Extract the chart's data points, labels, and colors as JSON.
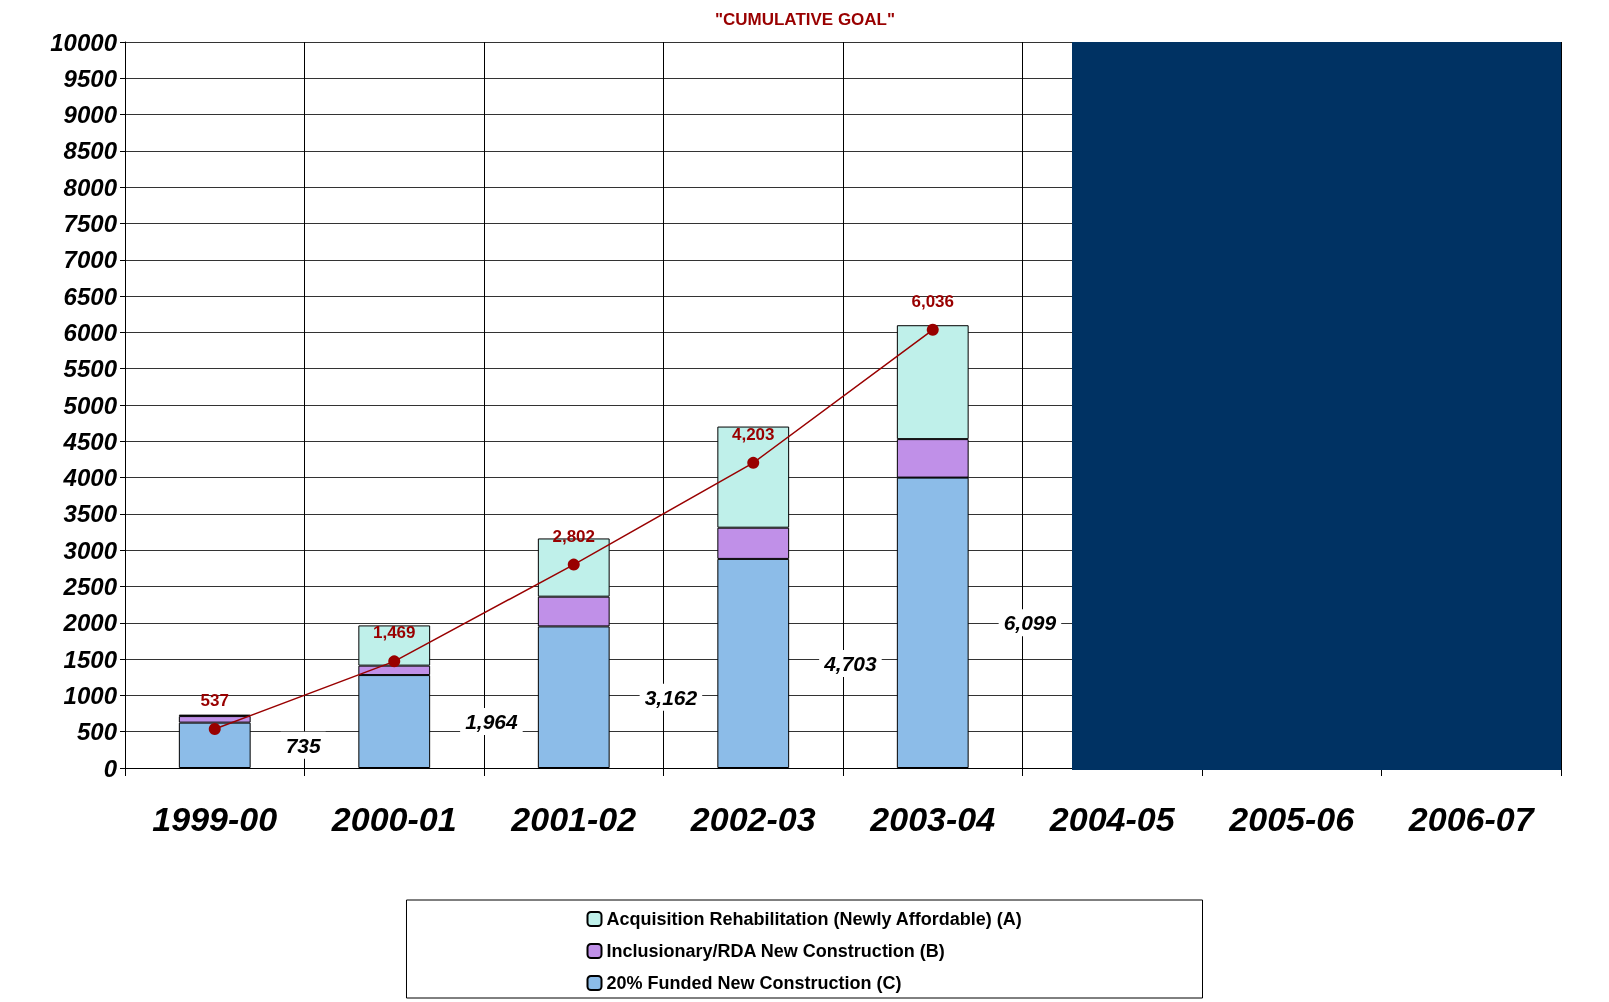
{
  "chart_data": {
    "type": "bar",
    "title": "\"CUMULATIVE GOAL\"",
    "stacked": true,
    "categories": [
      "1999-00",
      "2000-01",
      "2001-02",
      "2002-03",
      "2003-04",
      "2004-05",
      "2005-06",
      "2006-07"
    ],
    "series": [
      {
        "name": "20% Funded New Construction (C)",
        "color": "#8cbce8",
        "values": [
          625,
          1280,
          1950,
          2880,
          4000,
          null,
          null,
          null
        ]
      },
      {
        "name": "Inclusionary/RDA New Construction (B)",
        "color": "#c090e8",
        "values": [
          90,
          130,
          410,
          430,
          530,
          null,
          null,
          null
        ]
      },
      {
        "name": "Acquisition Rehabilitation (Newly Affordable) (A)",
        "color": "#bff0ea",
        "values": [
          20,
          554,
          802,
          1393,
          1569,
          null,
          null,
          null
        ]
      },
      {
        "type": "line",
        "color": "#990000",
        "values": [
          537,
          1469,
          2802,
          4203,
          6036,
          null,
          null,
          null
        ],
        "value_labels": [
          "537",
          "1,469",
          "2,802",
          "4,203",
          "6,036",
          null,
          null,
          null
        ],
        "marker": "circle"
      }
    ],
    "totals": [
      "735",
      "1,964",
      "3,162",
      "4,703",
      "6,099",
      null,
      null,
      null
    ],
    "ylim": [
      0,
      10000
    ],
    "yticks": [
      0,
      500,
      1000,
      1500,
      2000,
      2500,
      3000,
      3500,
      4000,
      4500,
      5000,
      5500,
      6000,
      6500,
      7000,
      7500,
      8000,
      8500,
      9000,
      9500,
      10000
    ],
    "grid": true,
    "legend": "bottom"
  }
}
